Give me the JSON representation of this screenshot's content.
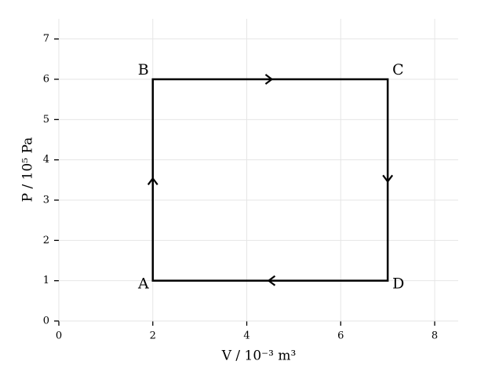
{
  "chart_data": {
    "type": "cycle",
    "xlabel": "V / 10⁻³ m³",
    "ylabel": "P / 10⁵ Pa",
    "xlim": [
      0,
      8.5
    ],
    "ylim": [
      0,
      7.5
    ],
    "xticks": [
      0,
      2,
      4,
      6,
      8
    ],
    "yticks": [
      0,
      1,
      2,
      3,
      4,
      5,
      6,
      7
    ],
    "grid": true,
    "series": [
      {
        "color": "#000000",
        "labels": [
          "A",
          "B",
          "C",
          "D"
        ],
        "x": [
          2,
          2,
          7,
          7
        ],
        "y": [
          1,
          6,
          6,
          1
        ]
      }
    ]
  }
}
